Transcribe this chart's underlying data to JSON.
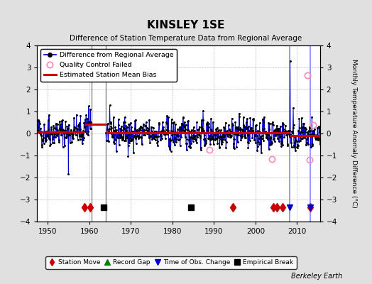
{
  "title": "KINSLEY 1SE",
  "subtitle": "Difference of Station Temperature Data from Regional Average",
  "ylabel": "Monthly Temperature Anomaly Difference (°C)",
  "xlabel_credit": "Berkeley Earth",
  "xlim": [
    1947.5,
    2015.5
  ],
  "ylim": [
    -4,
    4
  ],
  "yticks": [
    -4,
    -3,
    -2,
    -1,
    0,
    1,
    2,
    3,
    4
  ],
  "xticks": [
    1950,
    1960,
    1970,
    1980,
    1990,
    2000,
    2010
  ],
  "fig_bg_color": "#e0e0e0",
  "plot_bg_color": "#ffffff",
  "vertical_lines_gray": [
    1960.5,
    1964.0
  ],
  "vertical_lines_blue": [
    2008.3,
    2013.2
  ],
  "gray_vline_color": "#888888",
  "blue_vline_color": "#8888ff",
  "station_moves": [
    1958.8,
    1960.3,
    1994.5,
    2004.3,
    2005.2,
    2006.5,
    2013.2
  ],
  "empirical_breaks": [
    1963.5,
    1984.5
  ],
  "time_obs_changes": [
    2008.3,
    2013.2
  ],
  "bias_segments": [
    {
      "x": [
        1947.5,
        1958.8
      ],
      "y": [
        0.08,
        0.08
      ]
    },
    {
      "x": [
        1958.8,
        1964.0
      ],
      "y": [
        0.42,
        0.42
      ]
    },
    {
      "x": [
        1964.0,
        2008.3
      ],
      "y": [
        0.02,
        0.02
      ]
    },
    {
      "x": [
        2008.3,
        2015.5
      ],
      "y": [
        -0.1,
        -0.1
      ]
    }
  ],
  "qc_failed_x": [
    1989.0,
    2004.0,
    2012.5,
    2013.0,
    2013.8
  ],
  "qc_failed_y": [
    -0.75,
    -1.15,
    2.65,
    -1.2,
    0.4
  ],
  "seed": 42,
  "noise_std": 0.42,
  "gap_start": 1960.5,
  "gap_end": 1964.0,
  "spike_2008_y": 3.3,
  "spike_1955_y": -1.85,
  "marker_y": -3.35,
  "line_color": "#0000cc",
  "dot_color": "#000000",
  "red_color": "#cc0000",
  "qc_color": "#ff88bb"
}
